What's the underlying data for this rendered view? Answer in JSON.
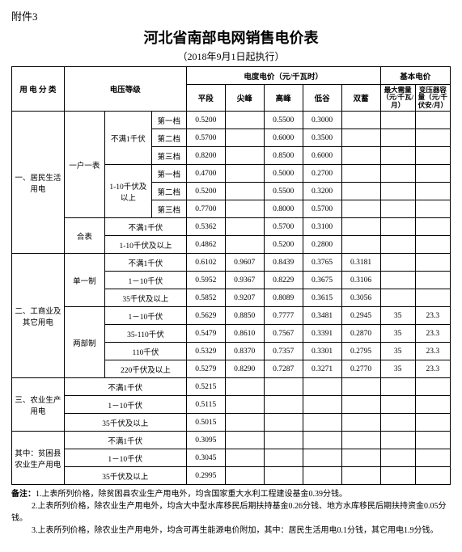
{
  "attachment": "附件3",
  "title": "河北省南部电网销售电价表",
  "subtitle": "（2018年9月1日起执行）",
  "headers": {
    "category": "用 电 分 类",
    "voltage": "电压等级",
    "energy_price": "电度电价（元/千瓦时）",
    "basic_price": "基本电价",
    "periods": [
      "平段",
      "尖峰",
      "高峰",
      "低谷",
      "双蓄"
    ],
    "max_demand": "最大需量（元/千瓦/月）",
    "transformer": "变压器容量（元/千伏安/月）"
  },
  "cat1": {
    "name": "一、居民生活用电",
    "meter1": "一户一表",
    "meter2": "合表",
    "v1": "不满1千伏",
    "v2": "1-10千伏及以上",
    "tier1": "第一档",
    "tier2": "第二档",
    "tier3": "第三档",
    "r": [
      [
        "0.5200",
        "",
        "0.5500",
        "0.3000",
        "",
        "",
        ""
      ],
      [
        "0.5700",
        "",
        "0.6000",
        "0.3500",
        "",
        "",
        ""
      ],
      [
        "0.8200",
        "",
        "0.8500",
        "0.6000",
        "",
        "",
        ""
      ],
      [
        "0.4700",
        "",
        "0.5000",
        "0.2700",
        "",
        "",
        ""
      ],
      [
        "0.5200",
        "",
        "0.5500",
        "0.3200",
        "",
        "",
        ""
      ],
      [
        "0.7700",
        "",
        "0.8000",
        "0.5700",
        "",
        "",
        ""
      ]
    ],
    "m2v1": "不满1千伏",
    "m2v2": "1-10千伏及以上",
    "m2r": [
      [
        "0.5362",
        "",
        "0.5700",
        "0.3100",
        "",
        "",
        ""
      ],
      [
        "0.4862",
        "",
        "0.5200",
        "0.2800",
        "",
        "",
        ""
      ]
    ]
  },
  "cat2": {
    "name": "二、工商业及其它用电",
    "sys1": "单一制",
    "sys2": "两部制",
    "s1v": [
      "不满1千伏",
      "1－10千伏",
      "35千伏及以上"
    ],
    "s1r": [
      [
        "0.6102",
        "0.9607",
        "0.8439",
        "0.3765",
        "0.3181",
        "",
        ""
      ],
      [
        "0.5952",
        "0.9367",
        "0.8229",
        "0.3675",
        "0.3106",
        "",
        ""
      ],
      [
        "0.5852",
        "0.9207",
        "0.8089",
        "0.3615",
        "0.3056",
        "",
        ""
      ]
    ],
    "s2v": [
      "1－10千伏",
      "35-110千伏",
      "110千伏",
      "220千伏及以上"
    ],
    "s2r": [
      [
        "0.5629",
        "0.8850",
        "0.7777",
        "0.3481",
        "0.2945",
        "35",
        "23.3"
      ],
      [
        "0.5479",
        "0.8610",
        "0.7567",
        "0.3391",
        "0.2870",
        "35",
        "23.3"
      ],
      [
        "0.5329",
        "0.8370",
        "0.7357",
        "0.3301",
        "0.2795",
        "35",
        "23.3"
      ],
      [
        "0.5279",
        "0.8290",
        "0.7287",
        "0.3271",
        "0.2770",
        "35",
        "23.3"
      ]
    ]
  },
  "cat3": {
    "name": "三、农业生产用电",
    "v": [
      "不满1千伏",
      "1－10千伏",
      "35千伏及以上"
    ],
    "r": [
      [
        "0.5215"
      ],
      [
        "0.5115"
      ],
      [
        "0.5015"
      ]
    ]
  },
  "cat4": {
    "name": "其中：贫困县农业生产用电",
    "v": [
      "不满1千伏",
      "1－10千伏",
      "35千伏及以上"
    ],
    "r": [
      [
        "0.3095"
      ],
      [
        "0.3045"
      ],
      [
        "0.2995"
      ]
    ]
  },
  "notes": {
    "label": "备注：",
    "n1": "1.上表所列价格，除贫困县农业生产用电外，均含国家重大水利工程建设基金0.39分钱。",
    "n2": "2.上表所列价格，除农业生产用电外，均含大中型水库移民后期扶持基金0.26分钱、地方水库移民后期扶持资金0.05分钱。",
    "n3": "3.上表所列价格，除农业生产用电外，均含可再生能源电价附加，其中：居民生活用电0.1分钱，其它用电1.9分钱。"
  }
}
